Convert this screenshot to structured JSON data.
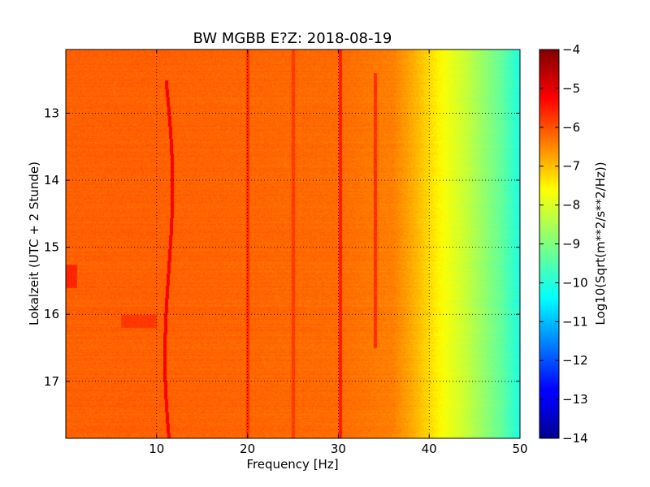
{
  "chart_data": {
    "type": "heatmap",
    "title": "BW MGBB E?Z: 2018-08-19",
    "xlabel": "Frequency [Hz]",
    "ylabel": "Lokalzeit (UTC + 2 Stunde)",
    "xlim": [
      0,
      50
    ],
    "ylim": [
      17.85,
      12.05
    ],
    "x_ticks": [
      10,
      20,
      30,
      40,
      50
    ],
    "x_tick_labels": [
      "10",
      "20",
      "30",
      "40",
      "50"
    ],
    "y_ticks": [
      13,
      14,
      15,
      16,
      17
    ],
    "y_tick_labels": [
      "13",
      "14",
      "15",
      "16",
      "17"
    ],
    "grid": true,
    "colormap": "jet",
    "colorbar": {
      "label": "Log10(Sqrt(m**2/s**2/Hz))",
      "range": [
        -14,
        -4
      ],
      "ticks": [
        -4,
        -5,
        -6,
        -7,
        -8,
        -9,
        -10,
        -11,
        -12,
        -13,
        -14
      ],
      "tick_labels": [
        "−4",
        "−5",
        "−6",
        "−7",
        "−8",
        "−9",
        "−10",
        "−11",
        "−12",
        "−13",
        "−14"
      ]
    },
    "spectrum_profile": {
      "frequency_hz": [
        0,
        10,
        20,
        30,
        36,
        38,
        40,
        42,
        44,
        46,
        48,
        50
      ],
      "value": [
        -6.2,
        -6.2,
        -6.25,
        -6.3,
        -6.5,
        -6.9,
        -7.4,
        -7.9,
        -8.3,
        -8.8,
        -9.3,
        -10.0
      ]
    },
    "features": [
      {
        "type": "line",
        "frequency_hz": 11.5,
        "time_from": 12.5,
        "time_to": 17.85,
        "value": -5.2
      },
      {
        "type": "line",
        "frequency_hz": 20.0,
        "time_from": 12.05,
        "time_to": 17.85,
        "value": -5.7
      },
      {
        "type": "line",
        "frequency_hz": 25.0,
        "time_from": 12.05,
        "time_to": 17.85,
        "value": -5.8
      },
      {
        "type": "line",
        "frequency_hz": 30.2,
        "time_from": 12.05,
        "time_to": 17.85,
        "value": -5.5
      },
      {
        "type": "line",
        "frequency_hz": 34.0,
        "time_from": 12.4,
        "time_to": 16.5,
        "value": -5.7
      },
      {
        "type": "patch",
        "frequency_from": 0,
        "frequency_to": 1.2,
        "time_from": 15.25,
        "time_to": 15.6,
        "value": -5.6
      },
      {
        "type": "patch",
        "frequency_from": 6,
        "frequency_to": 10,
        "time_from": 16.0,
        "time_to": 16.2,
        "value": -5.8
      }
    ]
  }
}
